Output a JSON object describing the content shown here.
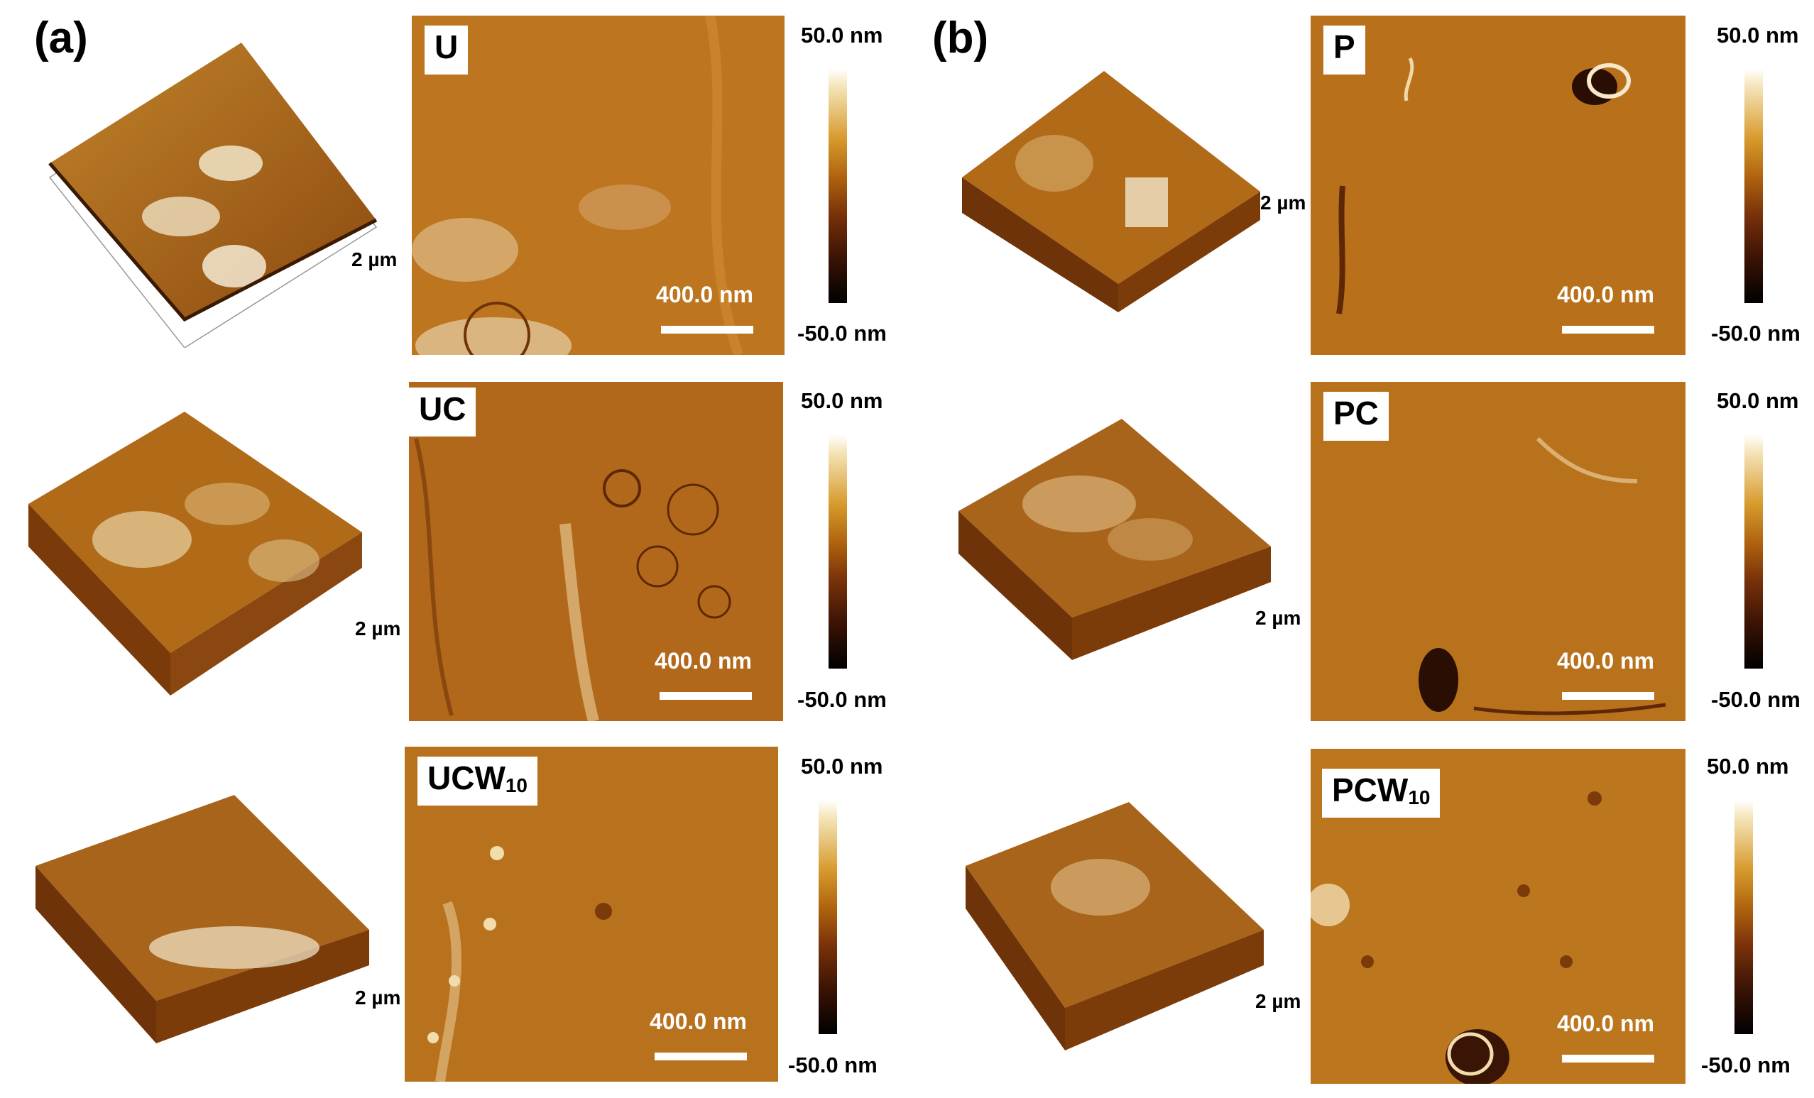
{
  "figure": {
    "panel_a_label": "(a)",
    "panel_b_label": "(b)",
    "colorbar_max": "50.0 nm",
    "colorbar_min": "-50.0 nm",
    "scale_bar_label": "400.0 nm",
    "lateral_size_label": "2 µm",
    "samples": {
      "U": {
        "name": "U",
        "sub": ""
      },
      "UC": {
        "name": "UC",
        "sub": ""
      },
      "UCW10": {
        "name": "UCW",
        "sub": "10"
      },
      "P": {
        "name": "P",
        "sub": ""
      },
      "PC": {
        "name": "PC",
        "sub": ""
      },
      "PCW10": {
        "name": "PCW",
        "sub": "10"
      }
    },
    "colors": {
      "afm_base": "#b8701a",
      "afm_dark": "#6e3308",
      "afm_light": "#f1d9a0",
      "peak_white": "#ffffff"
    }
  }
}
